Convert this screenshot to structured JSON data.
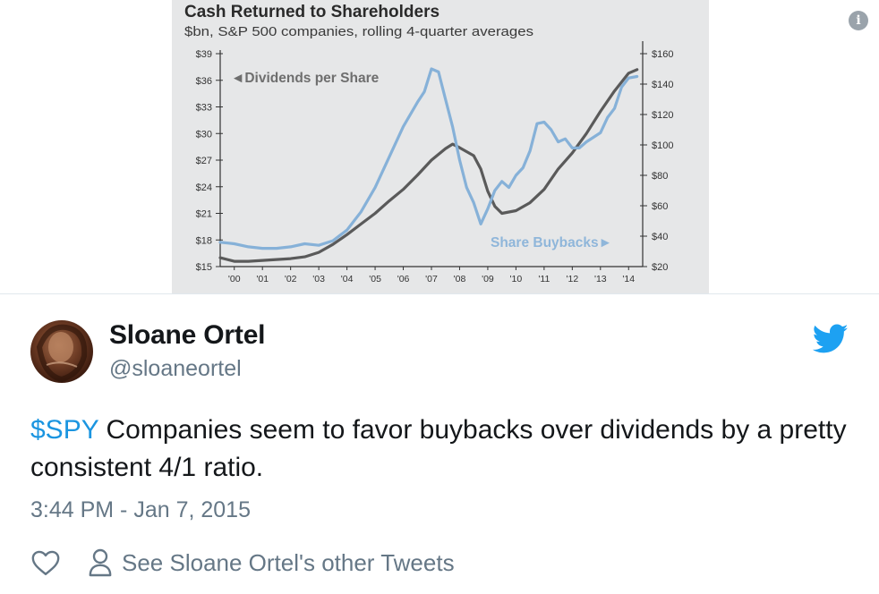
{
  "chart_data": {
    "type": "line",
    "title": "Cash Returned to Shareholders",
    "subtitle": "$bn, S&P 500 companies, rolling 4-quarter averages",
    "x_ticks": [
      "'00",
      "'01",
      "'02",
      "'03",
      "'04",
      "'05",
      "'06",
      "'07",
      "'08",
      "'09",
      "'10",
      "'11",
      "'12",
      "'13",
      "'14"
    ],
    "x_range": [
      2000,
      2015
    ],
    "y_left_ticks": [
      "$15",
      "$18",
      "$21",
      "$24",
      "$27",
      "$30",
      "$33",
      "$36",
      "$39"
    ],
    "y_left_range": [
      15,
      39
    ],
    "y_right_ticks": [
      "$20",
      "$40",
      "$60",
      "$80",
      "$100",
      "$120",
      "$140",
      "$160"
    ],
    "y_right_range": [
      20,
      160
    ],
    "grid": false,
    "series": [
      {
        "name": "Dividends per Share",
        "axis": "left",
        "color": "#5a5a5a",
        "points": [
          [
            2000,
            16.0
          ],
          [
            2000.5,
            15.6
          ],
          [
            2001,
            15.6
          ],
          [
            2001.5,
            15.7
          ],
          [
            2002,
            15.8
          ],
          [
            2002.5,
            15.9
          ],
          [
            2003,
            16.1
          ],
          [
            2003.5,
            16.6
          ],
          [
            2004,
            17.5
          ],
          [
            2004.5,
            18.6
          ],
          [
            2005,
            19.8
          ],
          [
            2005.5,
            21.0
          ],
          [
            2006,
            22.4
          ],
          [
            2006.5,
            23.7
          ],
          [
            2007,
            25.3
          ],
          [
            2007.5,
            27.0
          ],
          [
            2008,
            28.3
          ],
          [
            2008.25,
            28.8
          ],
          [
            2008.5,
            28.4
          ],
          [
            2009,
            27.5
          ],
          [
            2009.25,
            26.0
          ],
          [
            2009.5,
            23.5
          ],
          [
            2009.75,
            21.8
          ],
          [
            2010,
            21.0
          ],
          [
            2010.5,
            21.3
          ],
          [
            2011,
            22.2
          ],
          [
            2011.5,
            23.7
          ],
          [
            2012,
            26.0
          ],
          [
            2012.5,
            27.8
          ],
          [
            2013,
            30.0
          ],
          [
            2013.5,
            32.5
          ],
          [
            2014,
            34.8
          ],
          [
            2014.5,
            36.8
          ],
          [
            2014.8,
            37.2
          ]
        ]
      },
      {
        "name": "Share Buybacks",
        "axis": "right",
        "color": "#86b1d8",
        "points": [
          [
            2000,
            36
          ],
          [
            2000.5,
            35
          ],
          [
            2001,
            33
          ],
          [
            2001.5,
            32
          ],
          [
            2002,
            32
          ],
          [
            2002.5,
            33
          ],
          [
            2003,
            35
          ],
          [
            2003.5,
            34
          ],
          [
            2004,
            37
          ],
          [
            2004.5,
            44
          ],
          [
            2005,
            56
          ],
          [
            2005.5,
            72
          ],
          [
            2006,
            92
          ],
          [
            2006.5,
            112
          ],
          [
            2007,
            128
          ],
          [
            2007.25,
            135
          ],
          [
            2007.5,
            150
          ],
          [
            2007.75,
            148
          ],
          [
            2008,
            130
          ],
          [
            2008.25,
            112
          ],
          [
            2008.5,
            90
          ],
          [
            2008.75,
            72
          ],
          [
            2009,
            62
          ],
          [
            2009.25,
            48
          ],
          [
            2009.5,
            58
          ],
          [
            2009.75,
            70
          ],
          [
            2010,
            76
          ],
          [
            2010.25,
            72
          ],
          [
            2010.5,
            80
          ],
          [
            2010.75,
            85
          ],
          [
            2011,
            96
          ],
          [
            2011.25,
            114
          ],
          [
            2011.5,
            115
          ],
          [
            2011.75,
            110
          ],
          [
            2012,
            102
          ],
          [
            2012.25,
            104
          ],
          [
            2012.5,
            98
          ],
          [
            2012.75,
            98
          ],
          [
            2013,
            102
          ],
          [
            2013.5,
            108
          ],
          [
            2013.75,
            118
          ],
          [
            2014,
            124
          ],
          [
            2014.25,
            138
          ],
          [
            2014.5,
            144
          ],
          [
            2014.8,
            145
          ]
        ]
      }
    ],
    "annotations": [
      {
        "text": "◄Dividends per Share",
        "series": "Dividends per Share"
      },
      {
        "text": "Share Buybacks►",
        "series": "Share Buybacks"
      }
    ]
  },
  "tweet": {
    "author_name": "Sloane Ortel",
    "handle": "@sloaneortel",
    "cashtag": "$SPY",
    "text": " Companies seem to favor buybacks over dividends by a pretty consistent 4/1 ratio.",
    "timestamp": "3:44 PM - Jan 7, 2015",
    "see_other_label": "See Sloane Ortel's other Tweets",
    "info_glyph": "i"
  },
  "colors": {
    "twitter_blue": "#1da1f2",
    "link_blue": "#1b95e0",
    "secondary_text": "#657786",
    "primary_text": "#14171a"
  },
  "icons": [
    "info-icon",
    "twitter-bird-icon",
    "heart-icon",
    "person-icon"
  ]
}
